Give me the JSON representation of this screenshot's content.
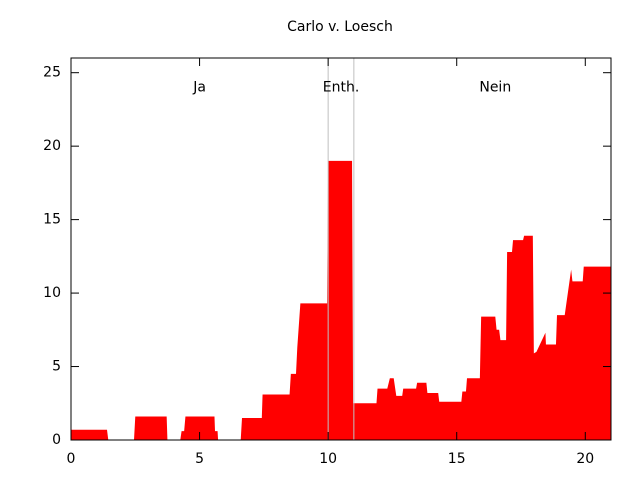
{
  "chart_data": {
    "type": "area",
    "title": "Carlo v. Loesch",
    "color": "#ff0000",
    "x": [
      0,
      1.4,
      1.45,
      2.45,
      2.5,
      3.72,
      3.75,
      4.25,
      4.3,
      4.4,
      4.45,
      5.58,
      5.6,
      5.7,
      5.72,
      6.6,
      6.65,
      7.42,
      7.45,
      8.5,
      8.55,
      8.75,
      8.8,
      8.92,
      9.96,
      10,
      10.93,
      10.97,
      11.88,
      11.92,
      12.3,
      12.4,
      12.55,
      12.65,
      12.88,
      12.92,
      13.42,
      13.46,
      13.82,
      13.86,
      14.28,
      14.32,
      15.18,
      15.22,
      15.36,
      15.4,
      15.9,
      15.95,
      16.5,
      16.55,
      16.65,
      16.7,
      16.92,
      16.96,
      17.15,
      17.19,
      17.58,
      17.62,
      17.96,
      18.0,
      18.1,
      18.45,
      18.47,
      18.86,
      18.9,
      19.2,
      19.45,
      19.5,
      19.9,
      19.94,
      21
    ],
    "values": [
      0.7,
      0.7,
      0,
      0,
      1.6,
      1.6,
      0,
      0,
      0.6,
      0.6,
      1.6,
      1.6,
      0.6,
      0.6,
      0,
      0,
      1.5,
      1.5,
      3.1,
      3.1,
      4.5,
      4.5,
      6.3,
      9.3,
      9.3,
      19,
      19,
      2.5,
      2.5,
      3.5,
      3.5,
      4.2,
      4.2,
      3.0,
      3.0,
      3.5,
      3.5,
      3.9,
      3.9,
      3.2,
      3.2,
      2.6,
      2.6,
      3.3,
      3.3,
      4.2,
      4.2,
      8.4,
      8.4,
      7.5,
      7.5,
      6.8,
      6.8,
      12.8,
      12.8,
      13.6,
      13.6,
      13.9,
      13.9,
      5.9,
      6.0,
      7.3,
      6.5,
      6.5,
      8.5,
      8.5,
      11.6,
      10.8,
      10.8,
      11.8,
      11.8
    ],
    "xlim": [
      0,
      21
    ],
    "ylim": [
      0,
      26
    ],
    "xticks": [
      0,
      5,
      10,
      15,
      20
    ],
    "yticks": [
      0,
      5,
      10,
      15,
      20,
      25
    ],
    "vlines": [
      10,
      11
    ],
    "vline_color": "#c0c0c0",
    "annotations": [
      {
        "text": "Ja",
        "x": 5,
        "y": 24
      },
      {
        "text": "Enth.",
        "x": 10.5,
        "y": 24
      },
      {
        "text": "Nein",
        "x": 16.5,
        "y": 24
      }
    ]
  }
}
